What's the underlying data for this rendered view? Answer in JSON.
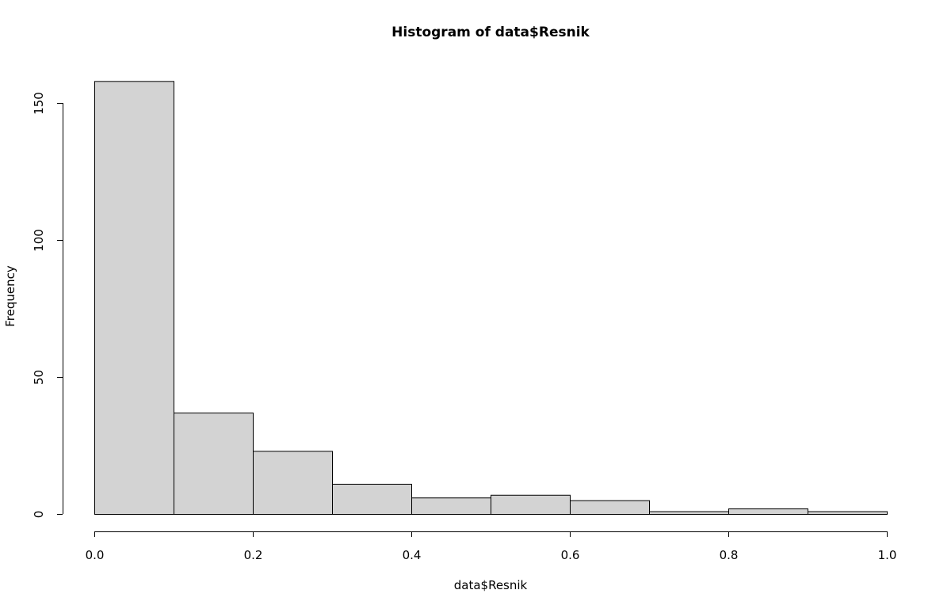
{
  "chart_data": {
    "type": "bar",
    "title": "Histogram of data$Resnik",
    "xlabel": "data$Resnik",
    "ylabel": "Frequency",
    "bins": [
      {
        "start": 0.0,
        "end": 0.1,
        "count": 158
      },
      {
        "start": 0.1,
        "end": 0.2,
        "count": 37
      },
      {
        "start": 0.2,
        "end": 0.3,
        "count": 23
      },
      {
        "start": 0.3,
        "end": 0.4,
        "count": 11
      },
      {
        "start": 0.4,
        "end": 0.5,
        "count": 6
      },
      {
        "start": 0.5,
        "end": 0.6,
        "count": 7
      },
      {
        "start": 0.6,
        "end": 0.7,
        "count": 5
      },
      {
        "start": 0.7,
        "end": 0.8,
        "count": 1
      },
      {
        "start": 0.8,
        "end": 0.9,
        "count": 2
      },
      {
        "start": 0.9,
        "end": 1.0,
        "count": 1
      }
    ],
    "xlim": [
      0,
      1
    ],
    "ylim": [
      0,
      158
    ],
    "x_ticks": [
      {
        "value": 0.0,
        "label": "0.0"
      },
      {
        "value": 0.2,
        "label": "0.2"
      },
      {
        "value": 0.4,
        "label": "0.4"
      },
      {
        "value": 0.6,
        "label": "0.6"
      },
      {
        "value": 0.8,
        "label": "0.8"
      },
      {
        "value": 1.0,
        "label": "1.0"
      }
    ],
    "y_ticks": [
      {
        "value": 0,
        "label": "0"
      },
      {
        "value": 50,
        "label": "50"
      },
      {
        "value": 100,
        "label": "100"
      },
      {
        "value": 150,
        "label": "150"
      }
    ],
    "grid": false,
    "bar_fill": "#d3d3d3",
    "bar_stroke": "#000000"
  }
}
